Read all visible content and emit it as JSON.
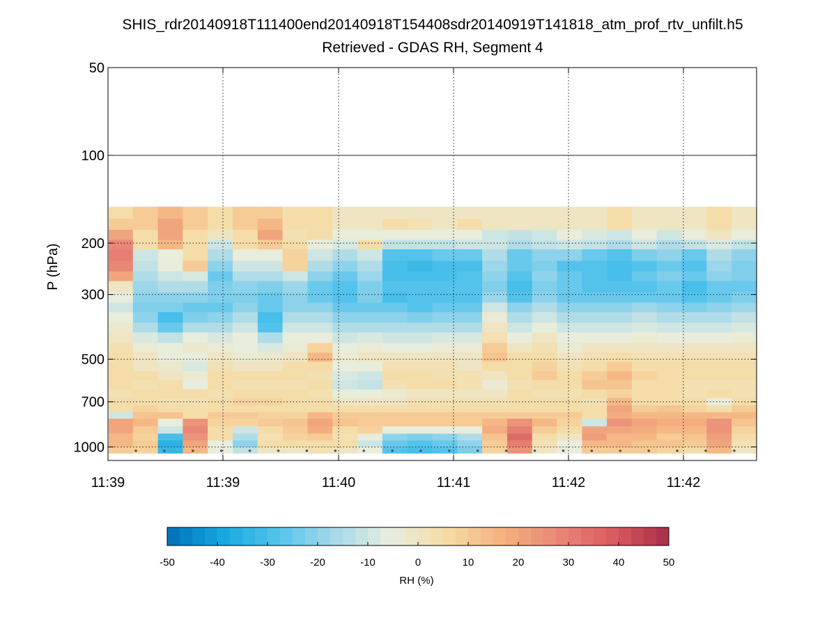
{
  "chart_data": {
    "type": "heatmap",
    "title": "SHIS_rdr20140918T111400end20140918T154408sdr20140919T141818_atm_prof_rtv_unfilt.h5",
    "subtitle": "Retrieved - GDAS RH, Segment 4",
    "ylabel": "P (hPa)",
    "y_scale": "log",
    "y_inverted": true,
    "ylim": [
      1050,
      50
    ],
    "y_ticks": [
      50,
      100,
      200,
      300,
      500,
      700,
      1000
    ],
    "x_tick_labels": [
      "11:39",
      "11:39",
      "11:40",
      "11:41",
      "11:42",
      "11:42"
    ],
    "grid": true,
    "colorbar": {
      "label": "RH (%)",
      "range": [
        -50,
        50
      ],
      "ticks": [
        -50,
        -40,
        -30,
        -20,
        -10,
        0,
        10,
        20,
        30,
        40,
        50
      ],
      "orientation": "horizontal",
      "placement": "bottom"
    },
    "colormap_stops": [
      "#0070b8",
      "#16a8e0",
      "#55c4ec",
      "#a6d9ea",
      "#e8eedf",
      "#f6dca6",
      "#f5b27f",
      "#e98877",
      "#da5b60",
      "#a52f47"
    ],
    "levels_hpa": [
      150,
      165,
      180,
      195,
      210,
      230,
      250,
      270,
      295,
      320,
      345,
      375,
      405,
      440,
      475,
      510,
      550,
      590,
      635,
      680,
      720,
      760,
      800,
      850,
      900,
      950,
      1000,
      1050
    ],
    "columns": [
      [
        5,
        10,
        20,
        28,
        30,
        28,
        20,
        0,
        -5,
        -10,
        -5,
        -2,
        0,
        3,
        5,
        5,
        5,
        5,
        3,
        5,
        5,
        -10,
        20,
        20,
        15,
        15,
        10
      ],
      [
        10,
        10,
        5,
        5,
        -10,
        -12,
        -15,
        -18,
        -20,
        -22,
        -20,
        -15,
        -8,
        -3,
        0,
        0,
        5,
        3,
        5,
        5,
        8,
        12,
        15,
        10,
        8,
        10,
        8
      ],
      [
        15,
        20,
        20,
        15,
        -5,
        -5,
        -10,
        -15,
        -20,
        -22,
        -30,
        -25,
        -12,
        -5,
        -5,
        -2,
        0,
        5,
        5,
        3,
        5,
        12,
        -5,
        -10,
        -30,
        -35,
        -33
      ],
      [
        10,
        10,
        5,
        5,
        5,
        10,
        -8,
        -15,
        -20,
        -25,
        -22,
        -15,
        -5,
        -2,
        -5,
        -8,
        -3,
        -5,
        5,
        3,
        5,
        5,
        25,
        28,
        25,
        20,
        15
      ],
      [
        5,
        5,
        0,
        -10,
        -15,
        -20,
        -25,
        -22,
        -22,
        -25,
        -20,
        -15,
        -8,
        -3,
        0,
        3,
        5,
        5,
        3,
        5,
        5,
        10,
        8,
        5,
        5,
        -5,
        -5
      ],
      [
        10,
        10,
        5,
        5,
        -5,
        -10,
        -15,
        -20,
        -22,
        -20,
        -15,
        -10,
        -5,
        -5,
        -3,
        0,
        5,
        3,
        5,
        8,
        5,
        10,
        8,
        -10,
        -15,
        -20,
        -12
      ],
      [
        10,
        15,
        20,
        10,
        -5,
        -10,
        -15,
        -22,
        -25,
        -25,
        -30,
        -28,
        -15,
        -8,
        -2,
        0,
        5,
        3,
        5,
        8,
        5,
        8,
        10,
        5,
        3,
        5,
        0
      ],
      [
        5,
        5,
        3,
        5,
        8,
        8,
        -10,
        -18,
        -20,
        -20,
        -15,
        -10,
        -5,
        -3,
        0,
        5,
        5,
        3,
        5,
        5,
        5,
        8,
        12,
        10,
        8,
        5,
        0
      ],
      [
        5,
        5,
        5,
        -5,
        -10,
        -15,
        -20,
        -25,
        -25,
        -20,
        -15,
        -10,
        -5,
        8,
        15,
        5,
        3,
        5,
        3,
        5,
        5,
        15,
        20,
        18,
        10,
        5,
        3
      ],
      [
        0,
        0,
        -5,
        -8,
        -15,
        -20,
        -25,
        -28,
        -28,
        -25,
        -20,
        -15,
        -10,
        -5,
        -3,
        -5,
        -8,
        -10,
        -5,
        0,
        5,
        10,
        12,
        5,
        3,
        5,
        0
      ],
      [
        0,
        0,
        -5,
        5,
        -10,
        -15,
        -18,
        -22,
        -22,
        -25,
        -20,
        -15,
        -8,
        -3,
        0,
        -5,
        -10,
        -12,
        -5,
        0,
        5,
        10,
        10,
        8,
        -5,
        -10,
        -5
      ],
      [
        0,
        5,
        -5,
        -12,
        -28,
        -30,
        -30,
        -28,
        -30,
        -25,
        -20,
        -15,
        -10,
        -5,
        0,
        3,
        5,
        3,
        -3,
        0,
        5,
        10,
        10,
        -5,
        -20,
        -25,
        -28
      ],
      [
        0,
        3,
        -5,
        -12,
        -28,
        -32,
        -30,
        -28,
        -28,
        -28,
        -22,
        -15,
        -10,
        -5,
        0,
        3,
        5,
        5,
        0,
        3,
        5,
        10,
        10,
        -5,
        -22,
        -28,
        -30
      ],
      [
        0,
        0,
        -5,
        -12,
        -25,
        -30,
        -30,
        -28,
        -28,
        -25,
        -20,
        -15,
        -8,
        -3,
        0,
        3,
        3,
        5,
        0,
        3,
        5,
        10,
        10,
        -5,
        -20,
        -25,
        -28
      ],
      [
        0,
        5,
        -5,
        -10,
        -25,
        -30,
        -28,
        -28,
        -28,
        -25,
        -20,
        -15,
        -8,
        -3,
        0,
        0,
        3,
        3,
        0,
        3,
        5,
        10,
        10,
        -5,
        -15,
        -20,
        -22
      ],
      [
        0,
        0,
        -10,
        -10,
        -15,
        -18,
        -20,
        -22,
        -18,
        -10,
        -3,
        0,
        3,
        10,
        12,
        5,
        0,
        -3,
        0,
        3,
        5,
        10,
        15,
        18,
        12,
        10,
        8
      ],
      [
        0,
        0,
        -12,
        -15,
        -25,
        -25,
        -28,
        -30,
        -28,
        -20,
        -15,
        -10,
        -5,
        0,
        5,
        5,
        5,
        3,
        5,
        5,
        5,
        10,
        25,
        30,
        35,
        30,
        25
      ],
      [
        0,
        0,
        -10,
        -12,
        -20,
        -22,
        -20,
        -22,
        -20,
        -15,
        -10,
        -5,
        0,
        3,
        5,
        8,
        10,
        5,
        3,
        5,
        5,
        10,
        15,
        10,
        5,
        3,
        0
      ],
      [
        0,
        0,
        -5,
        -10,
        -20,
        -28,
        -25,
        -25,
        -25,
        -20,
        -15,
        -10,
        -5,
        -3,
        0,
        3,
        5,
        5,
        3,
        5,
        5,
        10,
        8,
        5,
        0,
        -5,
        -5
      ],
      [
        0,
        0,
        -8,
        -12,
        -25,
        -28,
        -28,
        -28,
        -25,
        -20,
        -15,
        -10,
        -5,
        0,
        3,
        5,
        10,
        12,
        5,
        3,
        5,
        5,
        -10,
        20,
        22,
        15,
        10
      ],
      [
        5,
        5,
        -10,
        -15,
        -28,
        -30,
        -30,
        -28,
        -25,
        -20,
        -15,
        -10,
        -5,
        0,
        5,
        10,
        15,
        12,
        8,
        15,
        20,
        18,
        25,
        20,
        15,
        15,
        10
      ],
      [
        0,
        0,
        -5,
        -10,
        -22,
        -28,
        -25,
        -28,
        -25,
        -18,
        -12,
        -8,
        -3,
        0,
        3,
        5,
        8,
        5,
        5,
        5,
        10,
        15,
        20,
        18,
        15,
        12,
        10
      ],
      [
        0,
        0,
        -10,
        -15,
        -20,
        -25,
        -22,
        -25,
        -25,
        -20,
        -15,
        -10,
        -5,
        0,
        3,
        5,
        5,
        5,
        5,
        5,
        12,
        15,
        18,
        15,
        10,
        12,
        8
      ],
      [
        0,
        0,
        -5,
        -12,
        -25,
        -28,
        -25,
        -30,
        -28,
        -22,
        -15,
        -10,
        -5,
        0,
        3,
        5,
        5,
        3,
        3,
        5,
        8,
        15,
        18,
        15,
        12,
        10,
        5
      ],
      [
        5,
        5,
        0,
        -8,
        -15,
        -18,
        -20,
        -25,
        -25,
        -20,
        -15,
        -10,
        -5,
        0,
        3,
        5,
        5,
        3,
        5,
        -5,
        5,
        15,
        25,
        25,
        22,
        20,
        15
      ],
      [
        0,
        0,
        -5,
        -12,
        -20,
        -22,
        -22,
        -25,
        -22,
        -18,
        -12,
        -8,
        -3,
        0,
        3,
        5,
        5,
        3,
        3,
        5,
        10,
        15,
        12,
        8,
        5,
        3,
        0
      ]
    ]
  }
}
